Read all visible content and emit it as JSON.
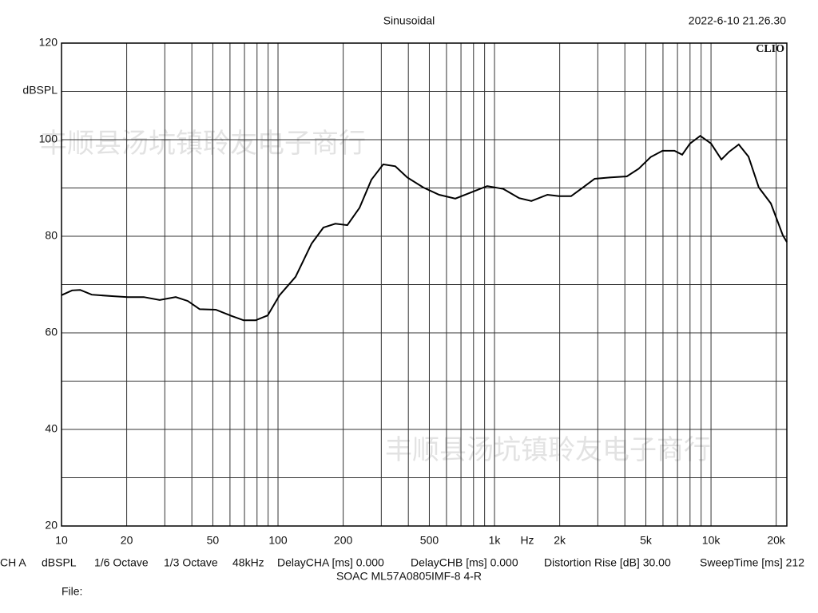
{
  "chart_data": {
    "type": "line",
    "title": "Sinusoidal",
    "timestamp": "2022-6-10 21.26.30",
    "brand": "CLIO",
    "y_label": "dBSPL",
    "x_unit_label": "Hz",
    "x": [
      10,
      11.2,
      12.2,
      13.8,
      17.1,
      20.2,
      24,
      28.4,
      33.7,
      38.3,
      43.5,
      51.6,
      61,
      69.4,
      78.8,
      89.6,
      101.7,
      120.5,
      143,
      162,
      184,
      209,
      238,
      270,
      306,
      348,
      395,
      469,
      555,
      659,
      781,
      925,
      1098,
      1300,
      1480,
      1755,
      1990,
      2257,
      2560,
      2900,
      3446,
      4084,
      4637,
      5260,
      5970,
      6780,
      7360,
      8000,
      8920,
      10000,
      11170,
      12130,
      13430,
      14900,
      16630,
      18900,
      21470,
      22400
    ],
    "values": [
      67.8,
      68.8,
      68.9,
      67.9,
      67.6,
      67.4,
      67.4,
      66.8,
      67.4,
      66.6,
      64.9,
      64.8,
      63.5,
      62.6,
      62.6,
      63.6,
      67.8,
      71.6,
      78.5,
      81.8,
      82.6,
      82.3,
      85.9,
      91.7,
      94.9,
      94.5,
      92.2,
      90.1,
      88.6,
      87.8,
      89.1,
      90.4,
      89.8,
      87.9,
      87.3,
      88.6,
      88.3,
      88.3,
      90.1,
      91.9,
      92.2,
      92.4,
      94.0,
      96.4,
      97.7,
      97.7,
      96.9,
      99.2,
      100.8,
      99.2,
      95.9,
      97.5,
      99.0,
      96.5,
      90.1,
      86.8,
      80.2,
      78.8
    ],
    "color": "#000000",
    "log_x": true,
    "xlim": [
      10,
      22400
    ],
    "ylim": [
      20,
      120
    ],
    "xticks": [
      10,
      20,
      50,
      100,
      200,
      500,
      {
        "value": 1000,
        "label": "1k"
      },
      {
        "value": 2000,
        "label": "2k"
      },
      {
        "value": 5000,
        "label": "5k"
      },
      {
        "value": 10000,
        "label": "10k"
      },
      {
        "value": 20000,
        "label": "20k"
      }
    ],
    "x_minor_ticks": [
      30,
      40,
      60,
      70,
      80,
      90,
      300,
      400,
      600,
      700,
      800,
      900,
      3000,
      4000,
      6000,
      7000,
      8000,
      9000
    ],
    "yticks": [
      20,
      40,
      60,
      80,
      100,
      120
    ],
    "y_minor_ticks": [
      30,
      50,
      70,
      90,
      110
    ],
    "grid": true,
    "footer": [
      "CH A",
      "dBSPL",
      "1/6 Octave",
      "1/3 Octave",
      "48kHz",
      "DelayCHA [ms] 0.000",
      "DelayCHB [ms] 0.000",
      "Distortion Rise [dB] 30.00",
      "SweepTime [ms] 212"
    ],
    "device": "SOAC ML57A0805IMF-8 4-R",
    "file_label": "File:",
    "watermark": "丰顺县汤坑镇聆友电子商行"
  }
}
